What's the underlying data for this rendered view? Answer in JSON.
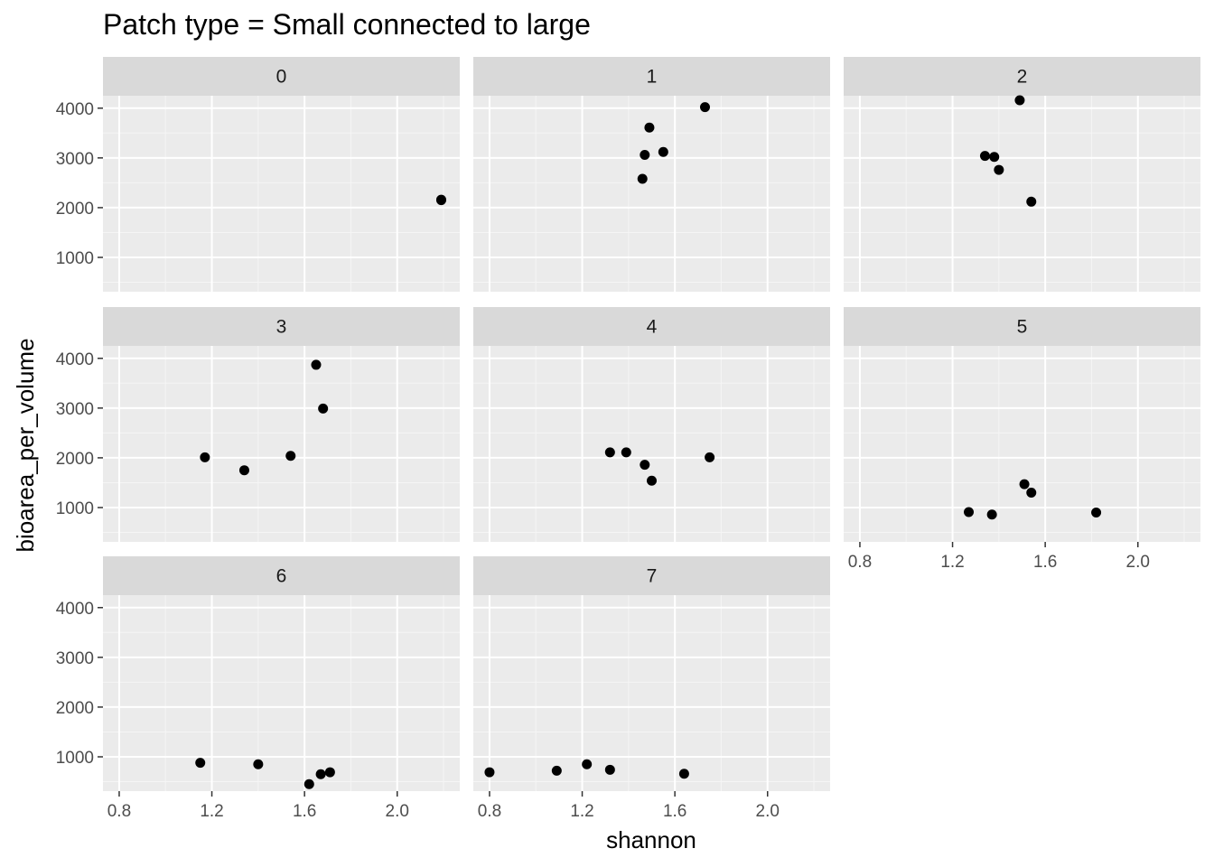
{
  "chart_data": {
    "type": "scatter",
    "title": "Patch type = Small connected to large",
    "xlabel": "shannon",
    "ylabel": "bioarea_per_volume",
    "xlim": [
      0.73,
      2.27
    ],
    "ylim": [
      310,
      4250
    ],
    "x_ticks": [
      0.8,
      1.2,
      1.6,
      2.0
    ],
    "x_tick_labels": [
      "0.8",
      "1.2",
      "1.6",
      "2.0"
    ],
    "y_ticks": [
      1000,
      2000,
      3000,
      4000
    ],
    "y_tick_labels": [
      "1000",
      "2000",
      "3000",
      "4000"
    ],
    "grid": true,
    "facet_ncol": 3,
    "point_color": "#000000",
    "panel_background": "#ebebeb",
    "strip_background": "#d9d9d9",
    "panels": [
      {
        "label": "0",
        "points": [
          [
            2.19,
            2160
          ],
          [
            2.19,
            2150
          ]
        ]
      },
      {
        "label": "1",
        "points": [
          [
            1.46,
            2580
          ],
          [
            1.47,
            3060
          ],
          [
            1.49,
            3610
          ],
          [
            1.55,
            3120
          ],
          [
            1.73,
            4020
          ]
        ]
      },
      {
        "label": "2",
        "points": [
          [
            1.34,
            3040
          ],
          [
            1.38,
            3020
          ],
          [
            1.4,
            2760
          ],
          [
            1.49,
            4160
          ],
          [
            1.54,
            2120
          ]
        ]
      },
      {
        "label": "3",
        "points": [
          [
            1.17,
            2010
          ],
          [
            1.34,
            1750
          ],
          [
            1.54,
            2040
          ],
          [
            1.65,
            3870
          ],
          [
            1.68,
            2990
          ]
        ]
      },
      {
        "label": "4",
        "points": [
          [
            1.32,
            2110
          ],
          [
            1.39,
            2110
          ],
          [
            1.47,
            1860
          ],
          [
            1.5,
            1540
          ],
          [
            1.75,
            2010
          ]
        ]
      },
      {
        "label": "5",
        "points": [
          [
            1.27,
            910
          ],
          [
            1.37,
            860
          ],
          [
            1.51,
            1470
          ],
          [
            1.54,
            1300
          ],
          [
            1.82,
            900
          ]
        ]
      },
      {
        "label": "6",
        "points": [
          [
            1.15,
            880
          ],
          [
            1.4,
            850
          ],
          [
            1.62,
            450
          ],
          [
            1.67,
            650
          ],
          [
            1.71,
            690
          ]
        ]
      },
      {
        "label": "7",
        "points": [
          [
            0.8,
            690
          ],
          [
            1.09,
            720
          ],
          [
            1.22,
            850
          ],
          [
            1.32,
            740
          ],
          [
            1.64,
            660
          ]
        ]
      }
    ]
  }
}
